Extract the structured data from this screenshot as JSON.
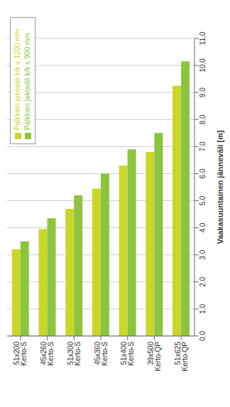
{
  "chart_data": {
    "type": "bar",
    "orientation": "horizontal",
    "xlabel": "Vaakasuuntainen jänneväli [m]",
    "categories": [
      "51x200 Kerto-S",
      "45x260 Kerto-S",
      "51x300 Kerto-S",
      "45x360 Kerto-S",
      "51x400 Kerto-S",
      "39x500 Kerto-QP",
      "51x625 Kerto-QP"
    ],
    "series": [
      {
        "name": "Palkkien jakoväli k/k ≤ 1200 mm",
        "color": "#cad62c",
        "values": [
          3.2,
          3.95,
          4.7,
          5.45,
          6.3,
          6.8,
          9.25
        ]
      },
      {
        "name": "Palkkien jakoväli k/k ≤ 900 mm",
        "color": "#8cc43f",
        "values": [
          3.5,
          4.35,
          5.2,
          6.0,
          6.9,
          7.5,
          10.15
        ]
      }
    ],
    "xlim": [
      0,
      11
    ],
    "xticks": [
      {
        "value": 0,
        "label": "0.0"
      },
      {
        "value": 1,
        "label": "1.0"
      },
      {
        "value": 2,
        "label": "2.0"
      },
      {
        "value": 3,
        "label": "3.0"
      },
      {
        "value": 4,
        "label": "4.0"
      },
      {
        "value": 5,
        "label": "5.0"
      },
      {
        "value": 6,
        "label": "6.0"
      },
      {
        "value": 7,
        "label": "7.0"
      },
      {
        "value": 8,
        "label": "8.0"
      },
      {
        "value": 9,
        "label": "9.0"
      },
      {
        "value": 10,
        "label": "10.0"
      },
      {
        "value": 11,
        "label": "11.0"
      }
    ],
    "grid": true,
    "legend": "upper right"
  }
}
